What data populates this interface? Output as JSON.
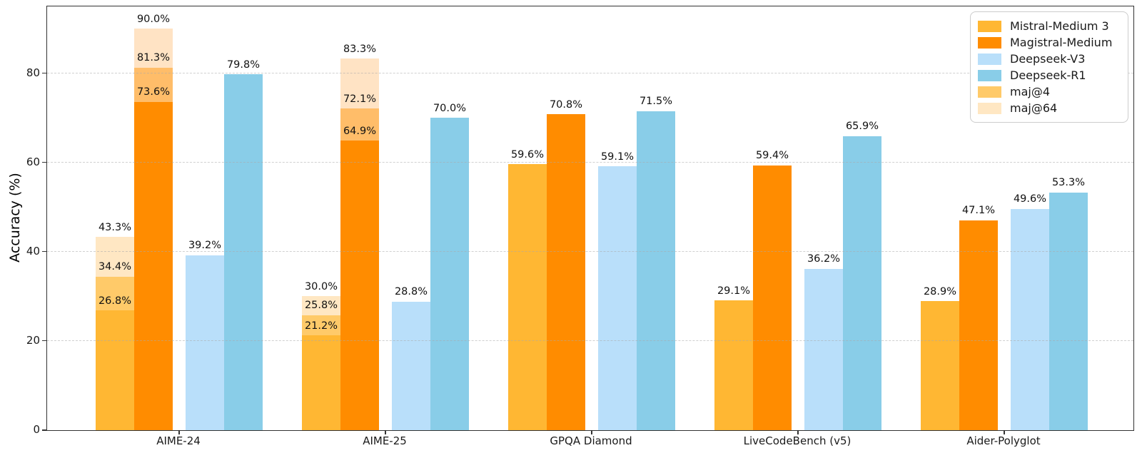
{
  "chart_data": {
    "type": "bar",
    "title": "",
    "xlabel": "",
    "ylabel": "Accuracy (%)",
    "ylim": [
      0,
      95
    ],
    "yticks": [
      0,
      20,
      40,
      60,
      80
    ],
    "grid": "horizontal dashed",
    "legend_position": "upper right",
    "categories": [
      "AIME-24",
      "AIME-25",
      "GPQA Diamond",
      "LiveCodeBench (v5)",
      "Aider-Polyglot"
    ],
    "series": [
      {
        "name": "Mistral-Medium 3",
        "color": "#FFB733",
        "maj4_color": "#FFCA69",
        "maj64_color": "#FFE7C3",
        "values": [
          26.8,
          21.2,
          59.6,
          29.1,
          28.9
        ],
        "maj4": [
          34.4,
          25.8,
          null,
          null,
          null
        ],
        "maj64": [
          43.3,
          30.0,
          null,
          null,
          null
        ]
      },
      {
        "name": "Magistral-Medium",
        "color": "#FF8C00",
        "maj4_color": "#FFBD69",
        "maj64_color": "#FFE3C4",
        "values": [
          73.6,
          64.9,
          70.8,
          59.4,
          47.1
        ],
        "maj4": [
          81.3,
          72.1,
          null,
          null,
          null
        ],
        "maj64": [
          90.0,
          83.3,
          null,
          null,
          null
        ]
      },
      {
        "name": "Deepseek-V3",
        "color": "#B9DFFA",
        "values": [
          39.2,
          28.8,
          59.1,
          36.2,
          49.6
        ]
      },
      {
        "name": "Deepseek-R1",
        "color": "#89CDE8",
        "values": [
          79.8,
          70.0,
          71.5,
          65.9,
          53.3
        ]
      }
    ],
    "legend": [
      {
        "label": "Mistral-Medium 3",
        "color": "#FFB733"
      },
      {
        "label": "Magistral-Medium",
        "color": "#FF8C00"
      },
      {
        "label": "Deepseek-V3",
        "color": "#B9DFFA"
      },
      {
        "label": "Deepseek-R1",
        "color": "#89CDE8"
      },
      {
        "label": "maj@4",
        "color": "#FFCA69"
      },
      {
        "label": "maj@64",
        "color": "#FFE7C3"
      }
    ],
    "value_label_format": "{value}%"
  }
}
